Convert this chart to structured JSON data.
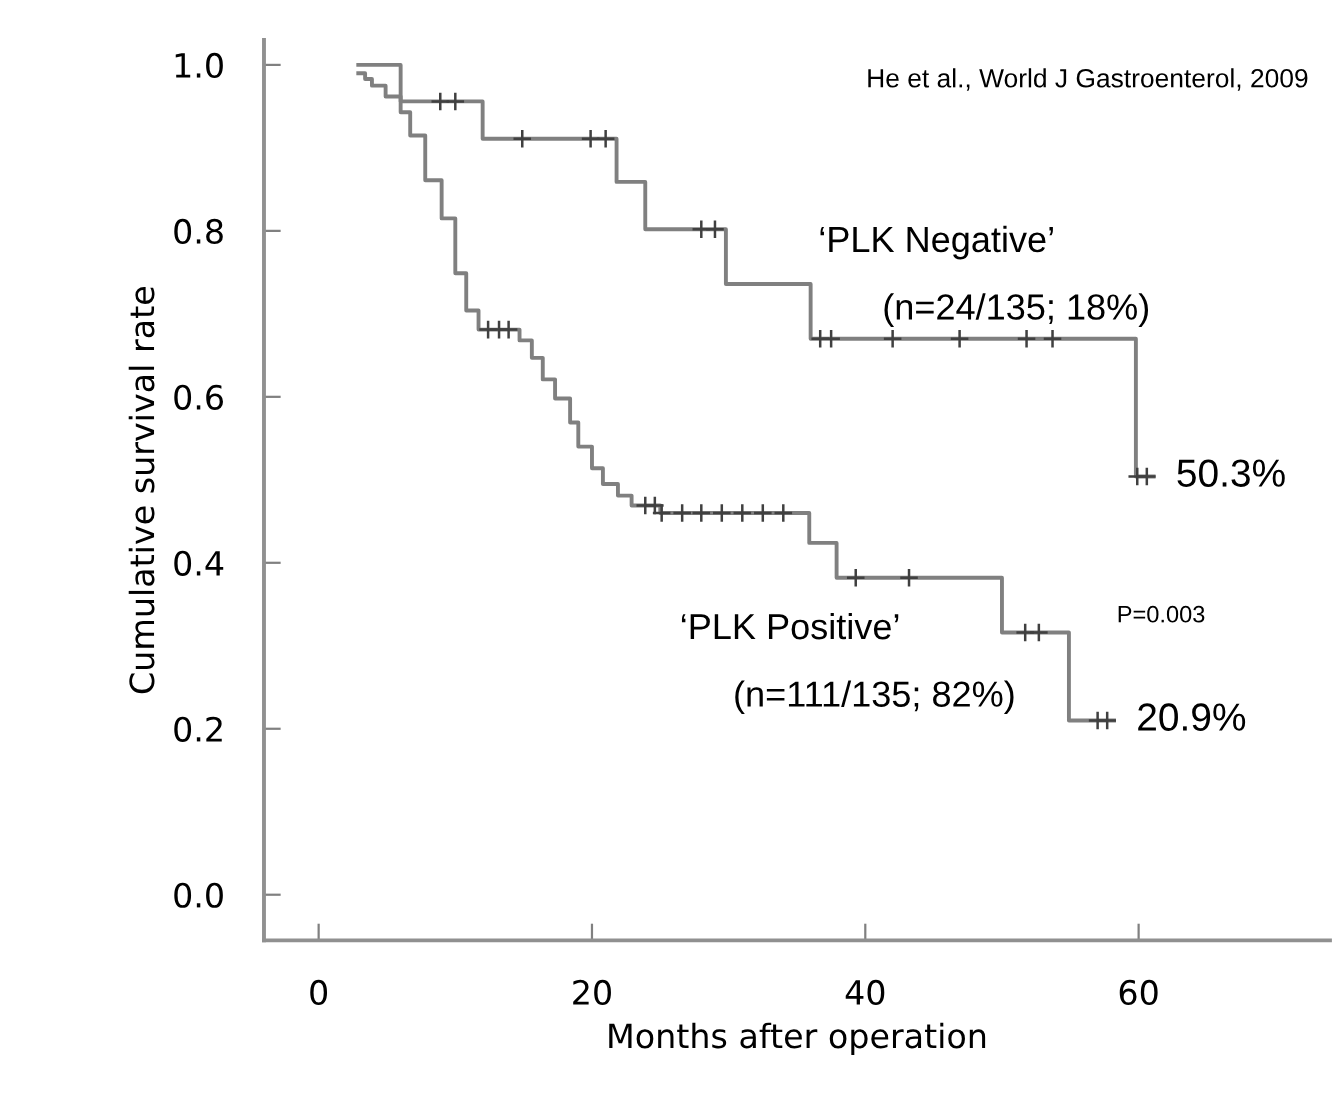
{
  "chart_data": {
    "type": "step",
    "xlabel": "Months after operation",
    "ylabel": "Cumulative survival rate",
    "xlim": [
      -4,
      74
    ],
    "ylim": [
      -0.055,
      1.03
    ],
    "xticks": [
      0,
      20,
      40,
      60
    ],
    "yticks": [
      {
        "value": 0,
        "label": "0.0"
      },
      {
        "value": 0.2,
        "label": "0.2"
      },
      {
        "value": 0.4,
        "label": "0.4"
      },
      {
        "value": 0.6,
        "label": "0.6"
      },
      {
        "value": 0.8,
        "label": "0.8"
      },
      {
        "value": 1,
        "label": "1.0"
      }
    ],
    "grid": false,
    "legend": false,
    "line_style": "solid",
    "series": [
      {
        "color": "#808080",
        "marker": "none",
        "x": [
          2.9,
          6.0,
          12.0,
          21.8,
          23.9,
          29.8,
          36.0,
          59.8,
          61.1
        ],
        "values": [
          1.0,
          0.956,
          0.911,
          0.859,
          0.802,
          0.736,
          0.67,
          0.504,
          0.504
        ]
      },
      {
        "color": "#808080",
        "marker": "none",
        "x": [
          2.9,
          3.4,
          3.9,
          4.9,
          6.0,
          6.7,
          7.8,
          9.0,
          10.0,
          10.8,
          11.7,
          14.7,
          15.6,
          16.4,
          17.3,
          18.4,
          19.0,
          20.0,
          20.8,
          21.9,
          22.9,
          25.0,
          35.9,
          37.9,
          50.0,
          54.9,
          58.2
        ],
        "values": [
          0.99,
          0.983,
          0.975,
          0.962,
          0.943,
          0.915,
          0.861,
          0.815,
          0.749,
          0.704,
          0.681,
          0.668,
          0.647,
          0.621,
          0.598,
          0.569,
          0.54,
          0.514,
          0.495,
          0.481,
          0.469,
          0.46,
          0.424,
          0.382,
          0.316,
          0.21,
          0.21
        ]
      },
      {
        "type": "scatter",
        "color": "#404040",
        "marker": "cross",
        "x": [
          8.9,
          10.0,
          14.9,
          19.9,
          21.0,
          28.0,
          29.0,
          36.7,
          37.5,
          42.0,
          46.9,
          51.8,
          53.7,
          59.9,
          60.6
        ],
        "values": [
          0.956,
          0.956,
          0.911,
          0.911,
          0.911,
          0.802,
          0.802,
          0.67,
          0.67,
          0.67,
          0.67,
          0.67,
          0.67,
          0.504,
          0.504
        ]
      },
      {
        "type": "scatter",
        "color": "#404040",
        "marker": "cross",
        "x": [
          12.4,
          13.2,
          13.9,
          23.9,
          24.6,
          25.1,
          26.6,
          28.0,
          29.5,
          31.0,
          32.5,
          34.0,
          39.3,
          43.2,
          51.7,
          52.7,
          57.0,
          57.7
        ],
        "values": [
          0.681,
          0.681,
          0.681,
          0.469,
          0.469,
          0.46,
          0.46,
          0.46,
          0.46,
          0.46,
          0.46,
          0.46,
          0.382,
          0.382,
          0.316,
          0.316,
          0.21,
          0.21
        ]
      }
    ],
    "annotations": [
      "He et al., World J Gastroenterol, 2009",
      "‘PLK Negative’",
      "(n=24/135; 18%)",
      "‘PLK Positive’",
      "(n=111/135; 82%)",
      "P=0.003",
      {
        "text": "50.3%",
        "x": 61.1,
        "y": 0.504
      },
      {
        "text": "20.9%",
        "x": 58.2,
        "y": 0.21
      }
    ]
  }
}
